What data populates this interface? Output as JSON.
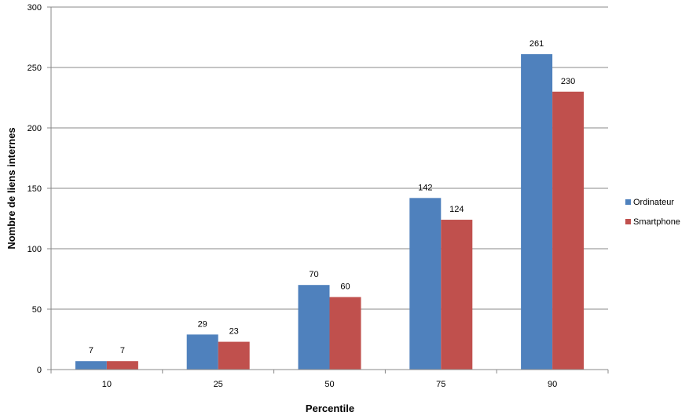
{
  "chart_data": {
    "type": "bar",
    "title": "",
    "xlabel": "Percentile",
    "ylabel": "Nombre de liens internes",
    "categories": [
      "10",
      "25",
      "50",
      "75",
      "90"
    ],
    "series": [
      {
        "name": "Ordinateur",
        "color": "#4f81bd",
        "values": [
          7,
          29,
          70,
          142,
          261
        ]
      },
      {
        "name": "Smartphone",
        "color": "#c0504d",
        "values": [
          7,
          23,
          60,
          124,
          230
        ]
      }
    ],
    "ylim": [
      0,
      300
    ],
    "yticks": [
      0,
      50,
      100,
      150,
      200,
      250,
      300
    ],
    "grid": true,
    "legend": "right",
    "data_labels": true
  }
}
